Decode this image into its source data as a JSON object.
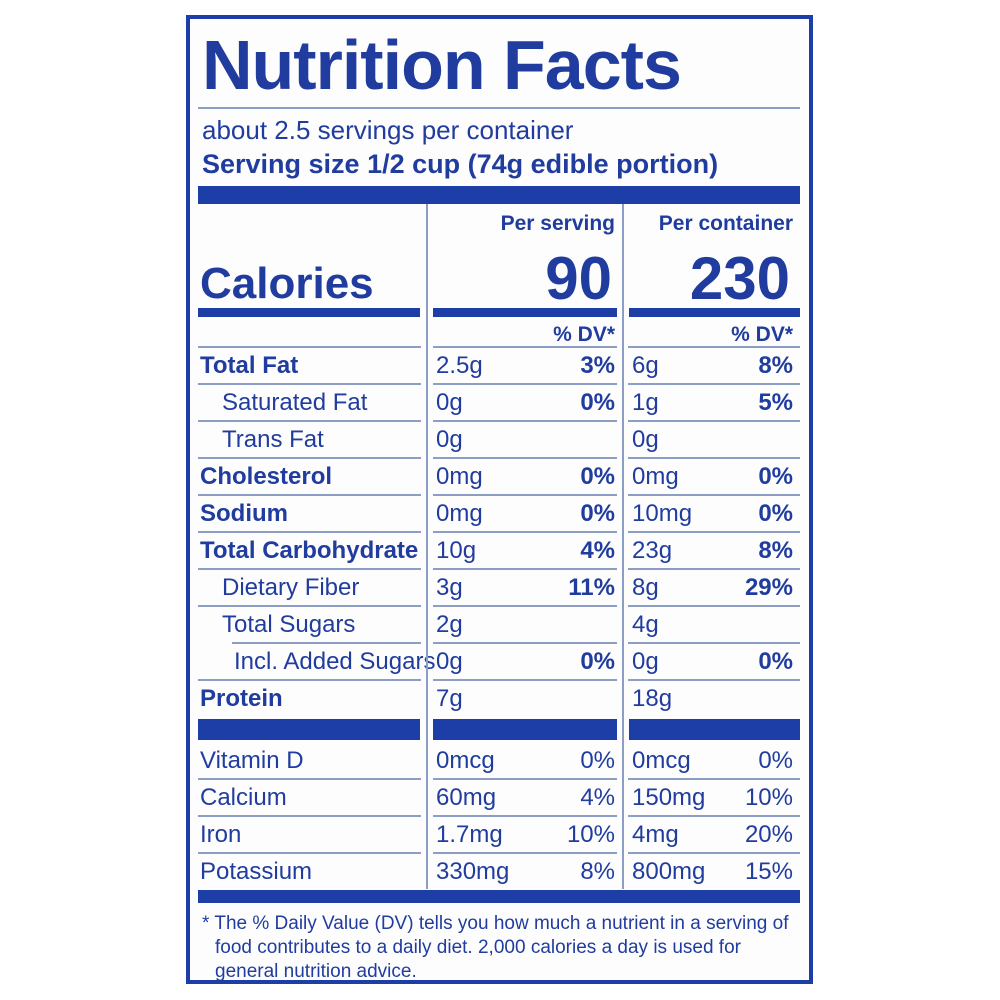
{
  "colors": {
    "primary_blue": "#1c3ea6",
    "text_blue": "#203c9e",
    "rule_blue_gray": "#8d9ec5",
    "label_background": "#fdfdfd",
    "page_background": "#ffffff"
  },
  "label": {
    "title": "Nutrition Facts",
    "servings_per_container": "about 2.5 servings per container",
    "serving_size": "Serving size 1/2 cup (74g edible portion)",
    "calories": {
      "name": "Calories",
      "per_serving_header": "Per serving",
      "per_container_header": "Per container",
      "per_serving_value": "90",
      "per_container_value": "230",
      "dv_header": "% DV*"
    },
    "nutrients": [
      {
        "name": "Total Fat",
        "bold": true,
        "indent": 0,
        "serving_amount": "2.5g",
        "serving_dv": "3%",
        "container_amount": "6g",
        "container_dv": "8%"
      },
      {
        "name": "Saturated Fat",
        "bold": false,
        "indent": 1,
        "serving_amount": "0g",
        "serving_dv": "0%",
        "container_amount": "1g",
        "container_dv": "5%"
      },
      {
        "name": "Trans Fat",
        "bold": false,
        "indent": 1,
        "serving_amount": "0g",
        "serving_dv": "",
        "container_amount": "0g",
        "container_dv": ""
      },
      {
        "name": "Cholesterol",
        "bold": true,
        "indent": 0,
        "serving_amount": "0mg",
        "serving_dv": "0%",
        "container_amount": "0mg",
        "container_dv": "0%"
      },
      {
        "name": "Sodium",
        "bold": true,
        "indent": 0,
        "serving_amount": "0mg",
        "serving_dv": "0%",
        "container_amount": "10mg",
        "container_dv": "0%"
      },
      {
        "name": "Total Carbohydrate",
        "bold": true,
        "indent": 0,
        "serving_amount": "10g",
        "serving_dv": "4%",
        "container_amount": "23g",
        "container_dv": "8%"
      },
      {
        "name": "Dietary Fiber",
        "bold": false,
        "indent": 1,
        "serving_amount": "3g",
        "serving_dv": "11%",
        "container_amount": "8g",
        "container_dv": "29%"
      },
      {
        "name": "Total Sugars",
        "bold": false,
        "indent": 1,
        "serving_amount": "2g",
        "serving_dv": "",
        "container_amount": "4g",
        "container_dv": ""
      },
      {
        "name": "Incl. Added Sugars",
        "bold": false,
        "indent": 2,
        "rule_indent": true,
        "serving_amount": "0g",
        "serving_dv": "0%",
        "container_amount": "0g",
        "container_dv": "0%"
      },
      {
        "name": "Protein",
        "bold": true,
        "indent": 0,
        "serving_amount": "7g",
        "serving_dv": "",
        "container_amount": "18g",
        "container_dv": ""
      }
    ],
    "vitamins": [
      {
        "name": "Vitamin D",
        "bold": false,
        "indent": 0,
        "serving_amount": "0mcg",
        "serving_dv": "0%",
        "container_amount": "0mcg",
        "container_dv": "0%"
      },
      {
        "name": "Calcium",
        "bold": false,
        "indent": 0,
        "serving_amount": "60mg",
        "serving_dv": "4%",
        "container_amount": "150mg",
        "container_dv": "10%"
      },
      {
        "name": "Iron",
        "bold": false,
        "indent": 0,
        "serving_amount": "1.7mg",
        "serving_dv": "10%",
        "container_amount": "4mg",
        "container_dv": "20%"
      },
      {
        "name": "Potassium",
        "bold": false,
        "indent": 0,
        "serving_amount": "330mg",
        "serving_dv": "8%",
        "container_amount": "800mg",
        "container_dv": "15%"
      }
    ],
    "footnote": {
      "marker": "*",
      "text": "The % Daily Value (DV) tells you how much a nutrient in a serving of food contributes to a daily diet. 2,000 calories a day is used for general nutrition advice."
    }
  }
}
